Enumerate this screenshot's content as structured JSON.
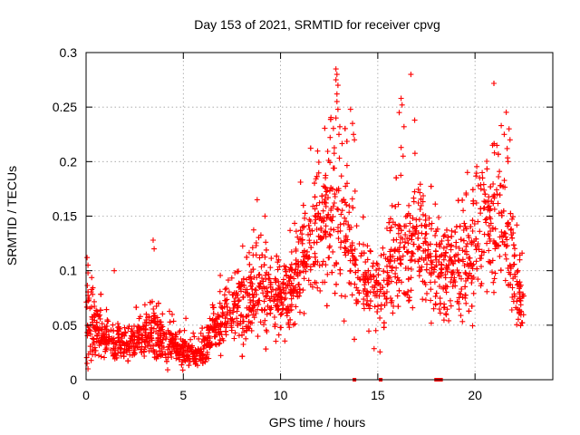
{
  "chart_data": {
    "type": "scatter",
    "title": "Day 153 of 2021, SRMTID for receiver cpvg",
    "xlabel": "GPS time / hours",
    "ylabel": "SRMTID / TECUs",
    "xlim": [
      0,
      24
    ],
    "ylim": [
      0,
      0.3
    ],
    "xticks": [
      0,
      5,
      10,
      15,
      20
    ],
    "xtick_labels": [
      "0",
      "5",
      "10",
      "15",
      "20"
    ],
    "yticks": [
      0,
      0.05,
      0.1,
      0.15,
      0.2,
      0.25,
      0.3
    ],
    "ytick_labels": [
      "0",
      "0.05",
      "0.1",
      "0.15",
      "0.2",
      "0.25",
      "0.3"
    ],
    "grid": true,
    "marker": "plus",
    "color": "#ff0000",
    "profile": {
      "x": [
        0,
        0.5,
        1,
        1.5,
        2,
        2.5,
        3,
        3.5,
        4,
        4.5,
        5,
        5.5,
        6,
        6.5,
        7,
        7.5,
        8,
        8.5,
        9,
        9.5,
        10,
        10.5,
        11,
        11.5,
        12,
        12.5,
        13,
        13.5,
        14,
        14.5,
        15,
        15.5,
        16,
        16.5,
        17,
        17.5,
        18,
        18.5,
        19,
        19.5,
        20,
        20.5,
        21,
        21.5,
        22,
        22.5
      ],
      "center": [
        0.055,
        0.045,
        0.038,
        0.036,
        0.034,
        0.035,
        0.04,
        0.05,
        0.035,
        0.03,
        0.027,
        0.025,
        0.027,
        0.045,
        0.055,
        0.06,
        0.07,
        0.08,
        0.085,
        0.08,
        0.072,
        0.08,
        0.1,
        0.13,
        0.14,
        0.15,
        0.15,
        0.13,
        0.1,
        0.09,
        0.085,
        0.09,
        0.11,
        0.125,
        0.13,
        0.12,
        0.1,
        0.095,
        0.1,
        0.11,
        0.125,
        0.14,
        0.145,
        0.14,
        0.1,
        0.06
      ],
      "spread": [
        0.028,
        0.022,
        0.016,
        0.014,
        0.014,
        0.014,
        0.016,
        0.025,
        0.016,
        0.013,
        0.012,
        0.011,
        0.012,
        0.016,
        0.022,
        0.025,
        0.028,
        0.035,
        0.03,
        0.027,
        0.025,
        0.028,
        0.035,
        0.04,
        0.045,
        0.055,
        0.06,
        0.05,
        0.035,
        0.035,
        0.035,
        0.04,
        0.055,
        0.05,
        0.045,
        0.04,
        0.035,
        0.035,
        0.04,
        0.045,
        0.05,
        0.05,
        0.05,
        0.05,
        0.04,
        0.02
      ]
    },
    "highlights": [
      {
        "x": 12.85,
        "y": 0.285
      },
      {
        "x": 12.9,
        "y": 0.28
      },
      {
        "x": 12.85,
        "y": 0.275
      },
      {
        "x": 12.95,
        "y": 0.27
      },
      {
        "x": 12.9,
        "y": 0.262
      },
      {
        "x": 12.9,
        "y": 0.255
      },
      {
        "x": 12.95,
        "y": 0.248
      },
      {
        "x": 12.85,
        "y": 0.24
      },
      {
        "x": 13.05,
        "y": 0.232
      },
      {
        "x": 13.0,
        "y": 0.225
      },
      {
        "x": 13.6,
        "y": 0.248
      },
      {
        "x": 13.7,
        "y": 0.235
      },
      {
        "x": 13.75,
        "y": 0.225
      },
      {
        "x": 13.8,
        "y": 0.22
      },
      {
        "x": 16.2,
        "y": 0.258
      },
      {
        "x": 16.25,
        "y": 0.252
      },
      {
        "x": 16.1,
        "y": 0.245
      },
      {
        "x": 16.35,
        "y": 0.232
      },
      {
        "x": 16.2,
        "y": 0.213
      },
      {
        "x": 16.3,
        "y": 0.205
      },
      {
        "x": 16.7,
        "y": 0.28
      },
      {
        "x": 16.9,
        "y": 0.238
      },
      {
        "x": 21.35,
        "y": 0.233
      },
      {
        "x": 21.5,
        "y": 0.225
      },
      {
        "x": 21.75,
        "y": 0.23
      },
      {
        "x": 21.8,
        "y": 0.22
      },
      {
        "x": 21.65,
        "y": 0.212
      },
      {
        "x": 21.7,
        "y": 0.2
      },
      {
        "x": 20.9,
        "y": 0.215
      },
      {
        "x": 21.0,
        "y": 0.208
      },
      {
        "x": 3.45,
        "y": 0.128
      },
      {
        "x": 3.5,
        "y": 0.12
      },
      {
        "x": 1.45,
        "y": 0.1
      },
      {
        "x": 0.05,
        "y": 0.112
      },
      {
        "x": 0.1,
        "y": 0.105
      },
      {
        "x": 0.1,
        "y": 0.098
      },
      {
        "x": 0.05,
        "y": 0.015
      },
      {
        "x": 0.1,
        "y": 0.01
      },
      {
        "x": 8.8,
        "y": 0.165
      },
      {
        "x": 9.2,
        "y": 0.15
      }
    ],
    "zero_points_x": [
      13.8,
      15.15,
      18.0,
      18.05,
      18.1,
      18.15,
      18.2,
      18.25
    ]
  }
}
